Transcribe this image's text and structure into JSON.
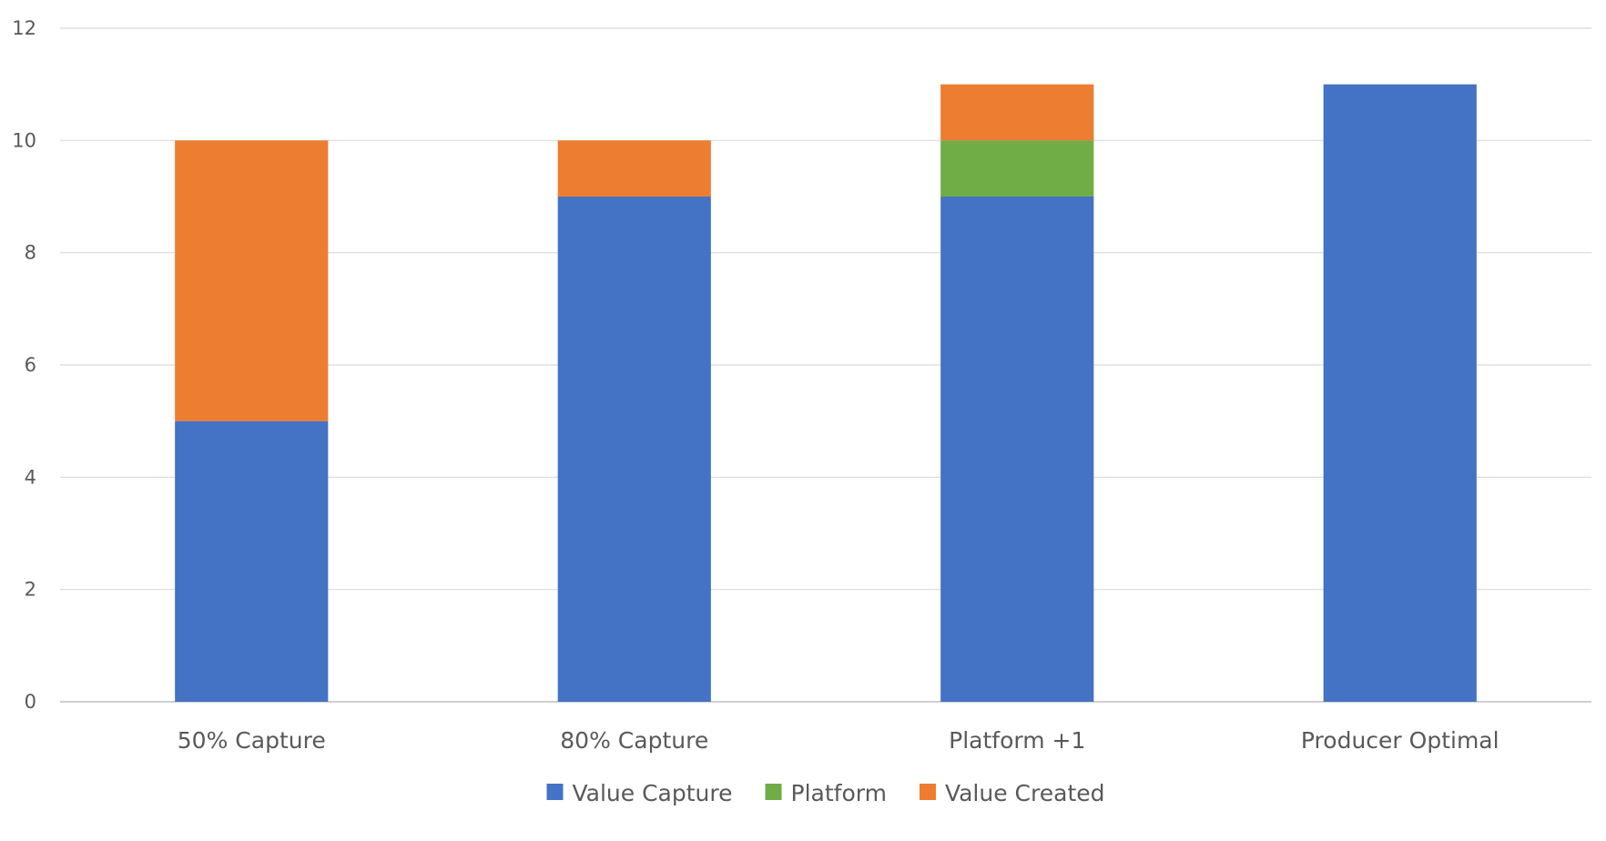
{
  "chart_data": {
    "type": "bar",
    "stacked": true,
    "title": "",
    "xlabel": "",
    "ylabel": "",
    "categories": [
      "50% Capture",
      "80% Capture",
      "Platform +1",
      "Producer Optimal"
    ],
    "series": [
      {
        "name": "Value Capture",
        "color": "#4472C4",
        "values": [
          5,
          9,
          9,
          11
        ]
      },
      {
        "name": "Platform",
        "color": "#70AD47",
        "values": [
          0,
          0,
          1,
          0
        ]
      },
      {
        "name": "Value Created",
        "color": "#ED7D31",
        "values": [
          5,
          1,
          1,
          0
        ]
      }
    ],
    "ylim": [
      0,
      12
    ],
    "yticks": [
      0,
      2,
      4,
      6,
      8,
      10,
      12
    ],
    "grid": true,
    "legend_position": "bottom"
  }
}
